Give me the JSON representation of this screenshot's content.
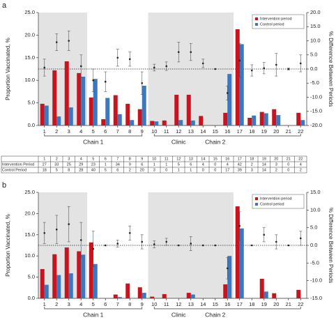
{
  "chart_data": [
    {
      "type": "bar_diff",
      "panel": "a",
      "categories": [
        "1",
        "2",
        "3",
        "4",
        "5",
        "6",
        "7",
        "8",
        "9",
        "10",
        "11",
        "12",
        "13",
        "14",
        "15",
        "16",
        "17",
        "18",
        "19",
        "20",
        "21",
        "22"
      ],
      "series": [
        {
          "name": "Intervention period",
          "color": "#c8141e",
          "values": [
            4.8,
            12.2,
            14.2,
            11.6,
            6.2,
            1.4,
            6.7,
            4.8,
            3.6,
            1.0,
            1.1,
            6.8,
            6.8,
            2.1,
            0,
            2.8,
            21.3,
            1.7,
            3.0,
            3.6,
            0,
            2.8
          ]
        },
        {
          "name": "Control period",
          "color": "#3a78c0",
          "values": [
            4.4,
            2.0,
            4.0,
            10.8,
            10.3,
            6.1,
            2.5,
            1.2,
            8.8,
            0.9,
            0,
            1.2,
            1.1,
            0,
            0,
            11.4,
            18.0,
            2.2,
            2.7,
            2.3,
            0,
            1.2
          ]
        },
        {
          "axis": "y2",
          "color": "#222",
          "values": [
            0.5,
            9.5,
            10,
            1,
            -4,
            -4.5,
            4,
            3.5,
            -5,
            0.5,
            1,
            6,
            6,
            2,
            0,
            -8.5,
            3,
            -0.5,
            0.3,
            1.5,
            0,
            2
          ],
          "errors": [
            3,
            3,
            3.5,
            4,
            4,
            3.5,
            3,
            2.5,
            4,
            1.2,
            1.5,
            3.5,
            3,
            1.5,
            0,
            2.5,
            6,
            2,
            2,
            4,
            0.3,
            3
          ]
        }
      ],
      "y_label": "Proportion Vaccinated, %",
      "y2_label": "% Difference Between Periods",
      "ylim": [
        0,
        25
      ],
      "yticks": [
        {
          "value": 0,
          "label": "0.0"
        },
        {
          "value": 5,
          "label": "5.0"
        },
        {
          "value": 10,
          "label": "10.0"
        },
        {
          "value": 15,
          "label": "15.0"
        },
        {
          "value": 20,
          "label": "20.0"
        },
        {
          "value": 25,
          "label": "25.0"
        }
      ],
      "y2lim": [
        -20,
        20
      ],
      "y2ticks": [
        {
          "value": -20,
          "label": "-20.0"
        },
        {
          "value": -15,
          "label": "-15.0"
        },
        {
          "value": -10,
          "label": "-10.0"
        },
        {
          "value": -5,
          "label": "-5.0"
        },
        {
          "value": 0,
          "label": "0.0"
        },
        {
          "value": 5,
          "label": "5.0"
        },
        {
          "value": 10,
          "label": "10.0"
        },
        {
          "value": 15,
          "label": "15.0"
        },
        {
          "value": 20,
          "label": "20.0"
        }
      ],
      "legend": "upper right",
      "groups": [
        "Chain 1",
        "Clinic",
        "Chain 2"
      ],
      "table": {
        "rows": [
          {
            "label": "Intervention Period",
            "values": [
              27,
              33,
              25,
              29,
              23,
              1,
              34,
              9,
              6,
              1,
              1,
              5,
              6,
              4,
              0,
              4,
              42,
              2,
              14,
              3,
              0,
              4
            ]
          },
          {
            "label": "Control Period",
            "values": [
              18,
              5,
              8,
              28,
              40,
              5,
              6,
              2,
              20,
              3,
              0,
              1,
              1,
              0,
              0,
              17,
              39,
              3,
              14,
              2,
              0,
              2
            ]
          }
        ]
      }
    },
    {
      "type": "bar_diff",
      "panel": "b",
      "categories": [
        "1",
        "2",
        "3",
        "4",
        "5",
        "6",
        "7",
        "8",
        "9",
        "10",
        "11",
        "12",
        "13",
        "14",
        "15",
        "16",
        "17",
        "18",
        "19",
        "20",
        "21",
        "22"
      ],
      "series": [
        {
          "name": "Intervention period",
          "color": "#c8141e",
          "values": [
            6.9,
            10.4,
            12.0,
            11.1,
            13.2,
            0,
            0.9,
            3.5,
            2.6,
            0.4,
            1.0,
            0,
            1.3,
            0,
            0,
            3.3,
            21.7,
            0,
            4.6,
            1.2,
            0,
            2.0
          ]
        },
        {
          "name": "Control period",
          "color": "#3a78c0",
          "values": [
            3.2,
            5.5,
            5.9,
            10.3,
            8.1,
            0,
            0.3,
            0,
            1.3,
            0,
            0,
            0,
            0.9,
            0,
            0,
            10.0,
            16.5,
            0,
            1.6,
            0,
            0,
            0
          ]
        },
        {
          "axis": "y2",
          "color": "#222",
          "values": [
            3.5,
            4.5,
            6,
            1.5,
            -1,
            0,
            0.5,
            3.5,
            1,
            0.3,
            1,
            0,
            0.5,
            0,
            0,
            -6.5,
            5.5,
            0,
            3,
            1,
            0,
            2
          ],
          "errors": [
            3,
            4,
            5,
            5,
            5,
            0,
            1,
            2,
            2,
            1,
            1,
            0,
            2,
            0,
            0,
            3,
            4,
            0,
            2,
            2,
            0,
            2
          ]
        }
      ],
      "y_label": "Proportion Vaccinated, %",
      "y2_label": "% Difference Between Periods",
      "ylim": [
        0,
        25
      ],
      "yticks": [
        {
          "value": 0,
          "label": "0.0"
        },
        {
          "value": 5,
          "label": "5.0"
        },
        {
          "value": 10,
          "label": "10.0"
        },
        {
          "value": 15,
          "label": "15.0"
        },
        {
          "value": 20,
          "label": "20.0"
        },
        {
          "value": 25,
          "label": "25.0"
        }
      ],
      "y2lim": [
        -15,
        15
      ],
      "y2ticks": [
        {
          "value": -15,
          "label": "-15.0"
        },
        {
          "value": -10,
          "label": "-10.0"
        },
        {
          "value": -5,
          "label": "-5.0"
        },
        {
          "value": 0,
          "label": "0.0"
        },
        {
          "value": 5,
          "label": "5.0"
        },
        {
          "value": 10,
          "label": "10.0"
        },
        {
          "value": 15,
          "label": "15.0"
        }
      ],
      "legend": "upper right",
      "groups": [
        "Chain 1",
        "Clinic",
        "Chain 2"
      ]
    }
  ]
}
